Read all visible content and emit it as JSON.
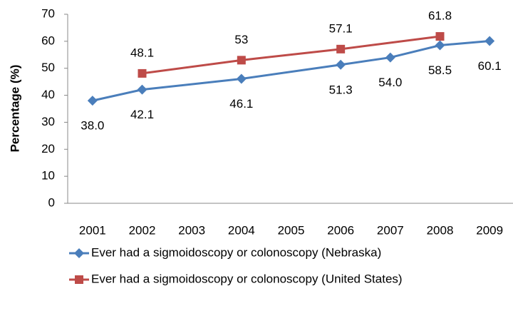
{
  "chart_data": {
    "type": "line",
    "y_label": "Percentage (%)",
    "xlim": [
      2000.5,
      2009.5
    ],
    "xticks": [
      2001,
      2002,
      2003,
      2004,
      2005,
      2006,
      2007,
      2008,
      2009
    ],
    "ylim": [
      0,
      70
    ],
    "yticks": [
      0,
      10,
      20,
      30,
      40,
      50,
      60,
      70
    ],
    "grid": false,
    "legend": "bottom",
    "series": [
      {
        "name": "Ever had a sigmoidoscopy or colonoscopy (Nebraska)",
        "color": "#4a7ebb",
        "marker": "diamond",
        "label_side": "below",
        "x": [
          2001,
          2002,
          2004,
          2006,
          2007,
          2008,
          2009
        ],
        "values": [
          38.0,
          42.1,
          46.1,
          51.3,
          54.0,
          58.5,
          60.1
        ],
        "value_labels": [
          "38.0",
          "42.1",
          "46.1",
          "51.3",
          "54.0",
          "58.5",
          "60.1"
        ]
      },
      {
        "name": "Ever had a sigmoidoscopy or colonoscopy (United States)",
        "color": "#be4b48",
        "marker": "square",
        "label_side": "above",
        "x": [
          2002,
          2004,
          2006,
          2008
        ],
        "values": [
          48.1,
          53,
          57.1,
          61.8
        ],
        "value_labels": [
          "48.1",
          "53",
          "57.1",
          "61.8"
        ]
      }
    ]
  }
}
